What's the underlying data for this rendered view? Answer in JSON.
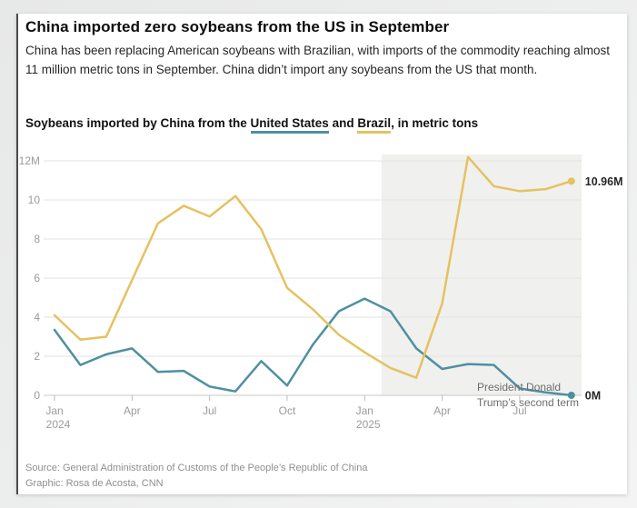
{
  "page": {
    "title": "China imported zero soybeans from the US in September",
    "subtitle": "China has been replacing American soybeans with Brazilian, with imports of the commodity reaching almost 11 million metric tons in September. China didn’t import any soybeans from the US that month.",
    "source_line1": "Source: General Administration of Customs of the People’s Republic of China",
    "source_line2": "Graphic: Rosa de Acosta, CNN"
  },
  "chart_heading": {
    "prefix": "Soybeans imported by China from the ",
    "us_label": "United States",
    "mid": " and ",
    "brazil_label": "Brazil",
    "suffix": ", in metric tons"
  },
  "chart_data": {
    "type": "line",
    "title": "Soybeans imported by China from the United States and Brazil, in metric tons",
    "unit": "million metric tons",
    "ylim": [
      0,
      12
    ],
    "grid": true,
    "x": [
      "Jan 2024",
      "Feb 2024",
      "Mar 2024",
      "Apr 2024",
      "May 2024",
      "Jun 2024",
      "Jul 2024",
      "Aug 2024",
      "Sep 2024",
      "Oct 2024",
      "Nov 2024",
      "Dec 2024",
      "Jan 2025",
      "Feb 2025",
      "Mar 2025",
      "Apr 2025",
      "May 2025",
      "Jun 2025",
      "Jul 2025",
      "Aug 2025",
      "Sep 2025"
    ],
    "series": [
      {
        "name": "United States",
        "color": "#4e90a1",
        "end_label": "0M",
        "values": [
          3.35,
          1.55,
          2.1,
          2.4,
          1.2,
          1.25,
          0.45,
          0.2,
          1.75,
          0.5,
          2.6,
          4.3,
          4.95,
          4.3,
          2.4,
          1.35,
          1.6,
          1.55,
          0.35,
          0.15,
          0
        ]
      },
      {
        "name": "Brazil",
        "color": "#e5c260",
        "end_label": "10.96M",
        "values": [
          4.1,
          2.85,
          3.0,
          5.9,
          8.8,
          9.7,
          9.15,
          10.2,
          8.5,
          5.5,
          4.4,
          3.1,
          2.2,
          1.4,
          0.9,
          4.7,
          12.2,
          10.7,
          10.45,
          10.55,
          10.96
        ]
      }
    ],
    "yticks": [
      0,
      2,
      4,
      6,
      8,
      10,
      12
    ],
    "ytick_labels": [
      "0",
      "2",
      "4",
      "6",
      "8",
      "10",
      "12M"
    ],
    "xticks": [
      {
        "index": 0,
        "line1": "Jan",
        "line2": "2024"
      },
      {
        "index": 3,
        "line1": "Apr"
      },
      {
        "index": 6,
        "line1": "Jul"
      },
      {
        "index": 9,
        "line1": "Oct"
      },
      {
        "index": 12,
        "line1": "Jan",
        "line2": "2025"
      },
      {
        "index": 15,
        "line1": "Apr"
      },
      {
        "index": 18,
        "line1": "Jul"
      }
    ],
    "shaded_region": {
      "from_index": 12.65,
      "to_index": 20.4,
      "color": "#f0f0ee"
    },
    "annotation": {
      "text": "President Donald Trump’s second term"
    }
  }
}
